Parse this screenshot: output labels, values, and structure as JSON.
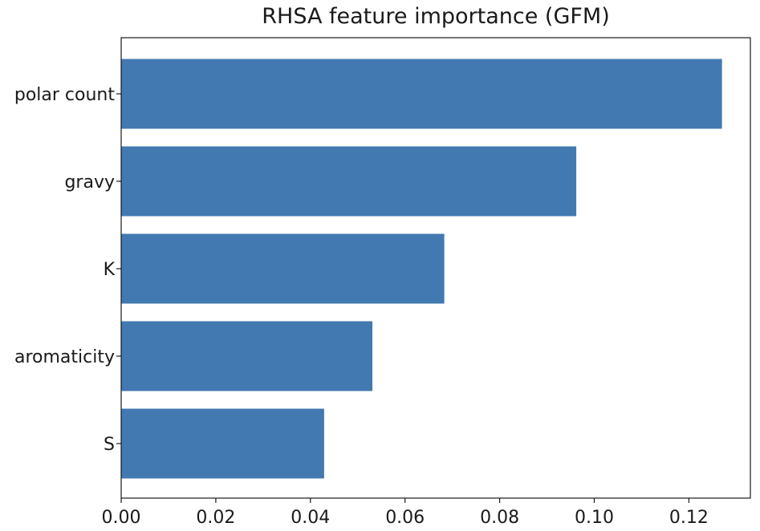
{
  "chart_data": {
    "type": "bar",
    "orientation": "horizontal",
    "title": "RHSA feature importance (GFM)",
    "xlabel": "",
    "ylabel": "",
    "categories": [
      "polar count",
      "gravy",
      "K",
      "aromaticity",
      "S"
    ],
    "values": [
      0.127,
      0.0962,
      0.0683,
      0.0531,
      0.0429
    ],
    "xlim": [
      0,
      0.133
    ],
    "xticks": [
      0.0,
      0.02,
      0.04,
      0.06,
      0.08,
      0.1,
      0.12
    ],
    "xtick_labels": [
      "0.00",
      "0.02",
      "0.04",
      "0.06",
      "0.08",
      "0.10",
      "0.12"
    ],
    "grid": false,
    "legend": "none",
    "bar_color": "#4279b1"
  }
}
